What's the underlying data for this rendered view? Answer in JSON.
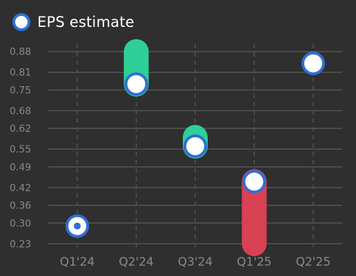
{
  "chart_data": {
    "type": "scatter",
    "title": "",
    "xlabel": "",
    "ylabel": "",
    "categories": [
      "Q1'24",
      "Q2'24",
      "Q3'24",
      "Q1'25",
      "Q2'25"
    ],
    "y_ticks": [
      "0.23",
      "0.30",
      "0.36",
      "0.42",
      "0.49",
      "0.55",
      "0.62",
      "0.68",
      "0.75",
      "0.81",
      "0.88"
    ],
    "ylim": [
      0.205,
      0.905
    ],
    "legend": {
      "label": "EPS estimate",
      "position": "top-left"
    },
    "series": [
      {
        "name": "EPS estimate",
        "values": [
          0.29,
          0.77,
          0.56,
          0.44,
          0.84
        ]
      }
    ],
    "actual_values": [
      0.29,
      0.88,
      0.59,
      0.23,
      null
    ],
    "colors": {
      "background": "#2f2f2f",
      "grid": "#555555",
      "beat": "#2ecf98",
      "miss": "#d94155",
      "estimate_fill": "#ffffff",
      "estimate_stroke": "#2f6fd6",
      "tick_text": "#8a8a8a"
    },
    "grid": true
  }
}
